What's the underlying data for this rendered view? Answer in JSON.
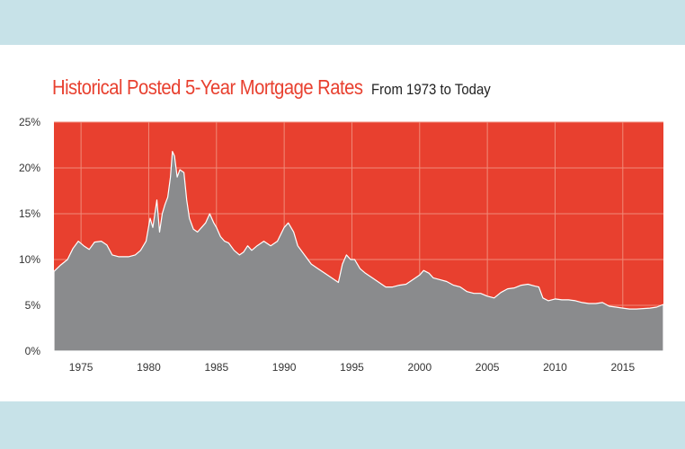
{
  "chart_data": {
    "type": "area",
    "title": "Historical Posted 5-Year Mortgage Rates",
    "subtitle": "From 1973 to Today",
    "xlabel": "",
    "ylabel": "",
    "xlim": [
      1973,
      2018
    ],
    "ylim": [
      0,
      25
    ],
    "grid": true,
    "colors": {
      "area": "#8a8b8d",
      "background": "#e8402f",
      "grid": "#f08a78",
      "title": "#e8402f"
    },
    "x_ticks": [
      {
        "value": 1975,
        "label": "1975"
      },
      {
        "value": 1980,
        "label": "1980"
      },
      {
        "value": 1985,
        "label": "1985"
      },
      {
        "value": 1990,
        "label": "1990"
      },
      {
        "value": 1995,
        "label": "1995"
      },
      {
        "value": 2000,
        "label": "2000"
      },
      {
        "value": 2005,
        "label": "2005"
      },
      {
        "value": 2010,
        "label": "2010"
      },
      {
        "value": 2015,
        "label": "2015"
      }
    ],
    "y_ticks": [
      {
        "value": 0,
        "label": "0%"
      },
      {
        "value": 5,
        "label": "5%"
      },
      {
        "value": 10,
        "label": "10%"
      },
      {
        "value": 15,
        "label": "15%"
      },
      {
        "value": 20,
        "label": "20%"
      },
      {
        "value": 25,
        "label": "25%"
      }
    ],
    "series": [
      {
        "values": [
          [
            1973.0,
            8.7
          ],
          [
            1973.5,
            9.4
          ],
          [
            1974.0,
            10.0
          ],
          [
            1974.4,
            11.2
          ],
          [
            1974.8,
            12.0
          ],
          [
            1975.2,
            11.5
          ],
          [
            1975.6,
            11.1
          ],
          [
            1976.0,
            11.9
          ],
          [
            1976.5,
            12.0
          ],
          [
            1976.9,
            11.6
          ],
          [
            1977.3,
            10.5
          ],
          [
            1977.8,
            10.3
          ],
          [
            1978.5,
            10.3
          ],
          [
            1979.0,
            10.5
          ],
          [
            1979.4,
            11.0
          ],
          [
            1979.8,
            12.0
          ],
          [
            1980.1,
            14.5
          ],
          [
            1980.3,
            13.5
          ],
          [
            1980.5,
            15.5
          ],
          [
            1980.6,
            16.5
          ],
          [
            1980.8,
            13.0
          ],
          [
            1981.0,
            15.0
          ],
          [
            1981.2,
            16.0
          ],
          [
            1981.4,
            16.8
          ],
          [
            1981.6,
            19.0
          ],
          [
            1981.75,
            21.8
          ],
          [
            1981.9,
            21.3
          ],
          [
            1982.1,
            19.0
          ],
          [
            1982.3,
            19.8
          ],
          [
            1982.6,
            19.5
          ],
          [
            1982.8,
            16.5
          ],
          [
            1983.0,
            14.5
          ],
          [
            1983.3,
            13.3
          ],
          [
            1983.6,
            13.0
          ],
          [
            1983.9,
            13.5
          ],
          [
            1984.2,
            14.0
          ],
          [
            1984.5,
            15.0
          ],
          [
            1984.8,
            14.0
          ],
          [
            1985.0,
            13.5
          ],
          [
            1985.3,
            12.5
          ],
          [
            1985.6,
            12.0
          ],
          [
            1985.9,
            11.8
          ],
          [
            1986.3,
            11.0
          ],
          [
            1986.7,
            10.5
          ],
          [
            1987.0,
            10.8
          ],
          [
            1987.3,
            11.5
          ],
          [
            1987.6,
            11.0
          ],
          [
            1988.0,
            11.5
          ],
          [
            1988.5,
            12.0
          ],
          [
            1989.0,
            11.5
          ],
          [
            1989.5,
            12.0
          ],
          [
            1990.0,
            13.5
          ],
          [
            1990.3,
            14.0
          ],
          [
            1990.7,
            13.0
          ],
          [
            1991.0,
            11.5
          ],
          [
            1991.5,
            10.5
          ],
          [
            1992.0,
            9.5
          ],
          [
            1992.5,
            9.0
          ],
          [
            1993.0,
            8.5
          ],
          [
            1993.5,
            8.0
          ],
          [
            1994.0,
            7.5
          ],
          [
            1994.3,
            9.5
          ],
          [
            1994.6,
            10.5
          ],
          [
            1994.9,
            10.0
          ],
          [
            1995.2,
            10.0
          ],
          [
            1995.6,
            9.0
          ],
          [
            1996.0,
            8.5
          ],
          [
            1996.5,
            8.0
          ],
          [
            1997.0,
            7.5
          ],
          [
            1997.5,
            7.0
          ],
          [
            1998.0,
            7.0
          ],
          [
            1998.5,
            7.2
          ],
          [
            1999.0,
            7.3
          ],
          [
            1999.5,
            7.8
          ],
          [
            2000.0,
            8.3
          ],
          [
            2000.3,
            8.8
          ],
          [
            2000.7,
            8.5
          ],
          [
            2001.0,
            8.0
          ],
          [
            2001.5,
            7.8
          ],
          [
            2002.0,
            7.6
          ],
          [
            2002.5,
            7.2
          ],
          [
            2003.0,
            7.0
          ],
          [
            2003.5,
            6.5
          ],
          [
            2004.0,
            6.3
          ],
          [
            2004.5,
            6.3
          ],
          [
            2005.0,
            6.0
          ],
          [
            2005.5,
            5.8
          ],
          [
            2006.0,
            6.4
          ],
          [
            2006.5,
            6.8
          ],
          [
            2007.0,
            6.9
          ],
          [
            2007.5,
            7.2
          ],
          [
            2008.0,
            7.3
          ],
          [
            2008.5,
            7.1
          ],
          [
            2008.8,
            7.0
          ],
          [
            2009.1,
            5.8
          ],
          [
            2009.5,
            5.5
          ],
          [
            2010.0,
            5.7
          ],
          [
            2010.5,
            5.6
          ],
          [
            2011.0,
            5.6
          ],
          [
            2011.5,
            5.5
          ],
          [
            2012.0,
            5.3
          ],
          [
            2012.5,
            5.2
          ],
          [
            2013.0,
            5.2
          ],
          [
            2013.5,
            5.3
          ],
          [
            2014.0,
            4.9
          ],
          [
            2014.5,
            4.8
          ],
          [
            2015.0,
            4.7
          ],
          [
            2015.5,
            4.6
          ],
          [
            2016.0,
            4.6
          ],
          [
            2016.5,
            4.65
          ],
          [
            2017.0,
            4.7
          ],
          [
            2017.5,
            4.8
          ],
          [
            2018.0,
            5.1
          ]
        ]
      }
    ]
  }
}
